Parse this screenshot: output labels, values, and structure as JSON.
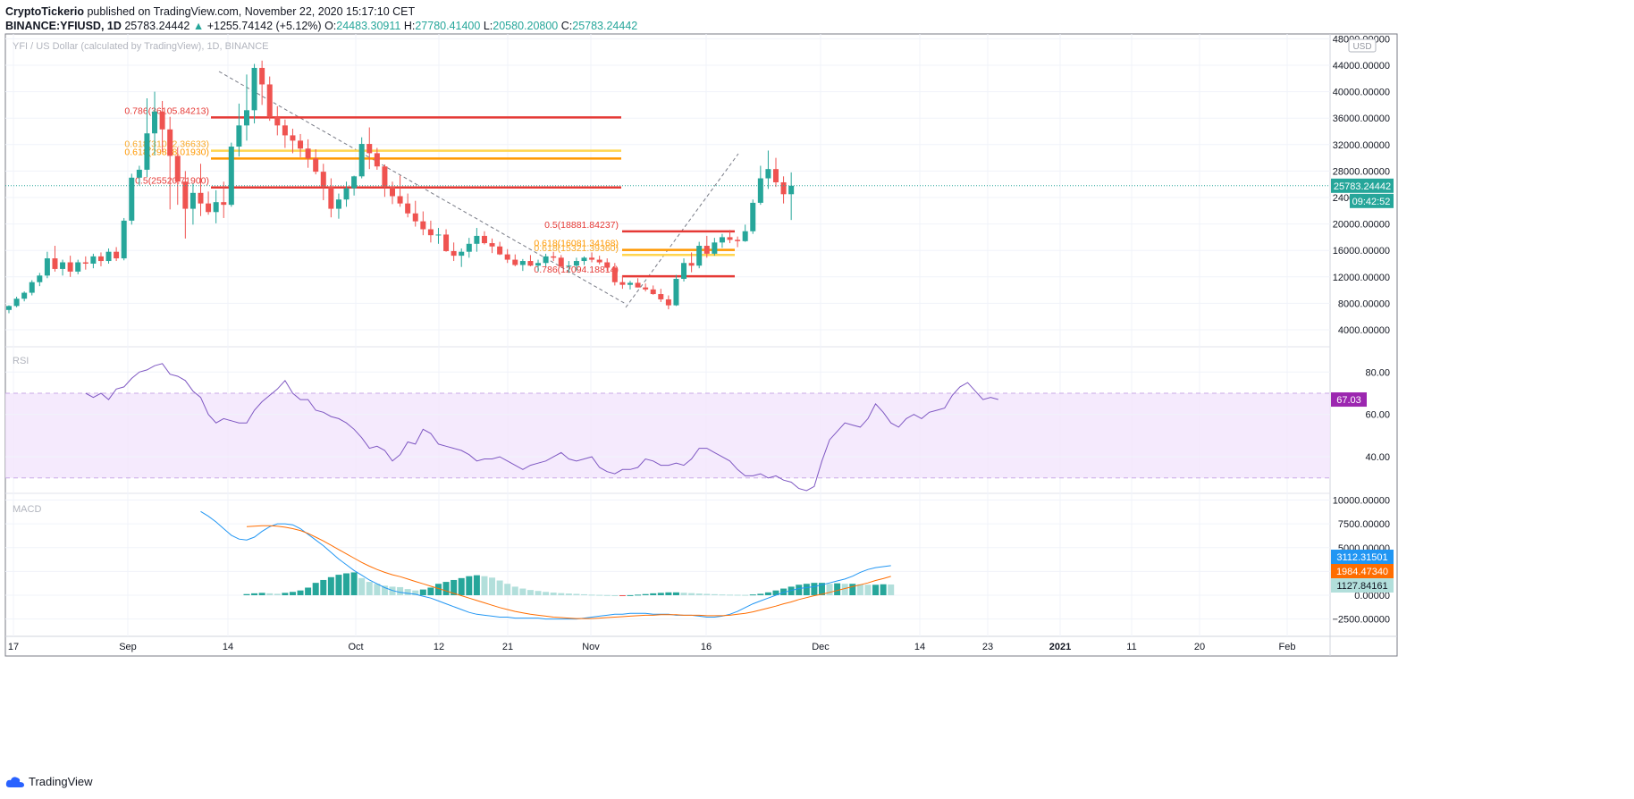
{
  "header": {
    "publisher": "CryptoTickerio",
    "published_text": "published on TradingView.com, November 22, 2020 15:17:10 CET",
    "symbol": "BINANCE:YFIUSD, 1D",
    "last": "25783.24442",
    "change": "+1255.74142 (+5.12%)",
    "open_label": "O:",
    "open": "24483.30911",
    "high_label": "H:",
    "high": "27780.41400",
    "low_label": "L:",
    "low": "20580.20800",
    "close_label": "C:",
    "close": "25783.24442"
  },
  "footer": {
    "brand": "TradingView"
  },
  "colors": {
    "up": "#26a69a",
    "down": "#ef5350",
    "rsi": "#7e57c2",
    "macd": "#2196f3",
    "signal": "#ff6d00",
    "hist_up_strong": "#26a69a",
    "hist_up_weak": "#b2dfdb",
    "hist_down_strong": "#ef5350",
    "hist_down_weak": "#ffcdd2",
    "fib_red": "#e53935",
    "fib_orange": "#ff9800",
    "fib_yellow": "#ffd54f"
  },
  "chart_data": [
    {
      "type": "candlestick",
      "title": "YFI / US Dollar (calculated by TradingView), 1D, BINANCE",
      "currency": "USD",
      "start_date": "2020-08-17",
      "x_ticks": [
        "17",
        "Sep",
        "14",
        "Oct",
        "12",
        "21",
        "Nov",
        "16",
        "Dec",
        "14",
        "23",
        "2021",
        "11",
        "20",
        "Feb"
      ],
      "y_ticks": [
        "48000.00000",
        "44000.00000",
        "40000.00000",
        "36000.00000",
        "32000.00000",
        "28000.00000",
        "24000.00000",
        "20000.00000",
        "16000.00000",
        "12000.00000",
        "8000.00000",
        "4000.00000"
      ],
      "ylim": [
        0,
        48500
      ],
      "ohlc": [
        [
          7000,
          7700,
          6500,
          7600
        ],
        [
          7600,
          9000,
          7400,
          8700
        ],
        [
          8700,
          9800,
          8300,
          9600
        ],
        [
          9600,
          11500,
          9200,
          11200
        ],
        [
          11200,
          12600,
          10600,
          12200
        ],
        [
          12200,
          15800,
          11800,
          14800
        ],
        [
          14800,
          16700,
          12800,
          13200
        ],
        [
          13200,
          14600,
          12200,
          14200
        ],
        [
          14200,
          15200,
          12000,
          12800
        ],
        [
          12800,
          14600,
          12400,
          14200
        ],
        [
          14200,
          15100,
          13100,
          14000
        ],
        [
          14000,
          15500,
          13300,
          15100
        ],
        [
          15100,
          15700,
          13600,
          14400
        ],
        [
          14400,
          16300,
          14000,
          15800
        ],
        [
          15800,
          16500,
          14400,
          14800
        ],
        [
          14800,
          20900,
          14500,
          20500
        ],
        [
          20500,
          27600,
          19900,
          27000
        ],
        [
          27000,
          28800,
          25800,
          28200
        ],
        [
          28200,
          39000,
          27100,
          33700
        ],
        [
          33700,
          40000,
          30400,
          37000
        ],
        [
          37000,
          38600,
          30900,
          34300
        ],
        [
          34300,
          36200,
          22200,
          30300
        ],
        [
          30300,
          31600,
          22900,
          26400
        ],
        [
          26400,
          28000,
          17800,
          22300
        ],
        [
          22300,
          26100,
          19900,
          24700
        ],
        [
          24700,
          29100,
          21200,
          23100
        ],
        [
          23100,
          24900,
          21400,
          21800
        ],
        [
          21800,
          25100,
          20100,
          23300
        ],
        [
          23300,
          26400,
          20900,
          22900
        ],
        [
          22900,
          32300,
          22600,
          31700
        ],
        [
          31700,
          38200,
          30200,
          34900
        ],
        [
          34900,
          42600,
          32600,
          37200
        ],
        [
          37200,
          44200,
          35200,
          43600
        ],
        [
          43600,
          44700,
          38000,
          41100
        ],
        [
          41100,
          42300,
          35600,
          36300
        ],
        [
          36300,
          37800,
          33400,
          34900
        ],
        [
          34900,
          35800,
          31500,
          33400
        ],
        [
          33400,
          34400,
          30700,
          32600
        ],
        [
          32600,
          33600,
          30100,
          31400
        ],
        [
          31400,
          32800,
          28500,
          29900
        ],
        [
          29900,
          31300,
          27500,
          27900
        ],
        [
          27900,
          29100,
          23600,
          25600
        ],
        [
          25600,
          26900,
          21000,
          22300
        ],
        [
          22300,
          24600,
          20800,
          23700
        ],
        [
          23700,
          26400,
          22600,
          25400
        ],
        [
          25400,
          27300,
          24300,
          27200
        ],
        [
          27200,
          33100,
          26900,
          32100
        ],
        [
          32100,
          34600,
          28300,
          30700
        ],
        [
          30700,
          31500,
          28200,
          28700
        ],
        [
          28700,
          29000,
          24100,
          25600
        ],
        [
          25600,
          26400,
          23000,
          24200
        ],
        [
          24200,
          27300,
          22600,
          23100
        ],
        [
          23100,
          24600,
          21000,
          21600
        ],
        [
          21600,
          23500,
          19600,
          20400
        ],
        [
          20400,
          21900,
          18300,
          19200
        ],
        [
          19200,
          20500,
          17200,
          18300
        ],
        [
          18300,
          19400,
          17000,
          18400
        ],
        [
          18400,
          19200,
          15800,
          15900
        ],
        [
          15900,
          17200,
          14400,
          15200
        ],
        [
          15200,
          16300,
          13500,
          15800
        ],
        [
          15800,
          17900,
          14900,
          17000
        ],
        [
          17000,
          19400,
          15800,
          18200
        ],
        [
          18200,
          18900,
          16900,
          17100
        ],
        [
          17100,
          17800,
          15600,
          16600
        ],
        [
          16600,
          17300,
          15300,
          15400
        ],
        [
          15400,
          16200,
          14100,
          14600
        ],
        [
          14600,
          15400,
          13600,
          13800
        ],
        [
          13800,
          14700,
          12900,
          14400
        ],
        [
          14400,
          15300,
          13600,
          13700
        ],
        [
          13700,
          14600,
          12800,
          14100
        ],
        [
          14100,
          15500,
          13600,
          15100
        ],
        [
          15100,
          15800,
          14400,
          14900
        ],
        [
          14900,
          15300,
          13400,
          13600
        ],
        [
          13600,
          14400,
          12600,
          13700
        ],
        [
          13700,
          14900,
          12900,
          14400
        ],
        [
          14400,
          15100,
          13800,
          14900
        ],
        [
          14900,
          15700,
          14200,
          14600
        ],
        [
          14600,
          15200,
          13900,
          14200
        ],
        [
          14200,
          14800,
          12900,
          13400
        ],
        [
          13400,
          14100,
          10700,
          11200
        ],
        [
          11200,
          12200,
          10200,
          10800
        ],
        [
          10800,
          11400,
          10100,
          11100
        ],
        [
          11100,
          11800,
          10400,
          10400
        ],
        [
          10400,
          11000,
          9800,
          10100
        ],
        [
          10100,
          10700,
          9300,
          9400
        ],
        [
          9400,
          10200,
          8200,
          8600
        ],
        [
          8600,
          9200,
          7100,
          7700
        ],
        [
          7700,
          12300,
          7600,
          11700
        ],
        [
          11700,
          14800,
          11300,
          14100
        ],
        [
          14100,
          15700,
          12700,
          13700
        ],
        [
          13700,
          17300,
          13300,
          16700
        ],
        [
          16700,
          18200,
          14900,
          15500
        ],
        [
          15500,
          17900,
          15200,
          17200
        ],
        [
          17200,
          18500,
          16400,
          18000
        ],
        [
          18000,
          19100,
          17100,
          17600
        ],
        [
          17600,
          18100,
          16500,
          17400
        ],
        [
          17400,
          19900,
          17300,
          18900
        ],
        [
          18900,
          23700,
          18500,
          23200
        ],
        [
          23200,
          28800,
          22900,
          26900
        ],
        [
          26900,
          31100,
          25300,
          28300
        ],
        [
          28300,
          30000,
          25600,
          26300
        ],
        [
          26300,
          27200,
          23100,
          24500
        ],
        [
          24500,
          27800,
          20600,
          25783
        ]
      ],
      "annotations": [
        {
          "label": "0.786(36105.84213)",
          "price": 36106,
          "color": "red"
        },
        {
          "label": "0.618(31072.36633)",
          "price": 31072,
          "color": "yellow"
        },
        {
          "label": "0.618(29888.01930)",
          "price": 29888,
          "color": "orange"
        },
        {
          "label": "0.5(25520.71900)",
          "price": 25521,
          "color": "red"
        },
        {
          "label": "0.5(18881.84237)",
          "price": 18882,
          "color": "red"
        },
        {
          "label": "0.618(16081.34168)",
          "price": 16081,
          "color": "orange"
        },
        {
          "label": "0.618(15321.39360)",
          "price": 15321,
          "color": "yellow"
        },
        {
          "label": "0.786(12094.18814)",
          "price": 12094,
          "color": "red"
        }
      ],
      "last_price_label": "25783.24442",
      "countdown_label": "09:42:52"
    },
    {
      "type": "line",
      "name": "RSI",
      "y_ticks": [
        "80.00",
        "60.00",
        "40.00"
      ],
      "ylim": [
        20,
        92
      ],
      "band": [
        30,
        70
      ],
      "start_index": 10,
      "values": [
        70,
        68,
        70,
        67,
        72,
        73,
        77,
        80,
        81,
        83,
        84,
        79,
        78,
        76,
        71,
        68,
        60,
        56,
        58,
        57,
        56,
        56,
        62,
        66,
        69,
        72,
        76,
        70,
        67,
        67,
        62,
        61,
        59,
        58,
        56,
        53,
        49,
        44,
        45,
        43,
        38,
        41,
        47,
        46,
        53,
        51,
        46,
        45,
        44,
        43,
        41,
        38,
        39,
        39,
        40,
        38,
        36,
        34,
        36,
        37,
        38,
        40,
        42,
        39,
        38,
        39,
        40,
        35,
        33,
        32,
        34,
        34,
        35,
        39,
        38,
        36,
        36,
        37,
        36,
        39,
        44,
        44,
        42,
        40,
        38,
        34,
        31,
        31,
        32,
        30,
        31,
        29,
        28,
        25,
        24,
        26,
        38,
        48,
        52,
        56,
        55,
        54,
        58,
        65,
        61,
        56,
        54,
        58,
        60,
        58,
        61,
        62,
        63,
        69,
        73,
        75,
        71,
        67,
        68,
        67.03
      ],
      "last_value_label": "67.03"
    },
    {
      "type": "macd",
      "name": "MACD",
      "y_ticks": [
        "10000.00000",
        "7500.00000",
        "5000.00000",
        "2500.00000",
        "0.00000",
        "-2500.00000"
      ],
      "ylim": [
        -4200,
        10500
      ],
      "macd_start_index": 25,
      "macd": [
        8800,
        8300,
        7700,
        7000,
        6300,
        5900,
        5800,
        6100,
        6700,
        7200,
        7500,
        7500,
        7400,
        7000,
        6400,
        5800,
        5200,
        4500,
        3800,
        3200,
        2600,
        2100,
        1600,
        1200,
        800,
        500,
        300,
        200,
        100,
        -100,
        -300,
        -600,
        -900,
        -1200,
        -1500,
        -1800,
        -2000,
        -2100,
        -2200,
        -2300,
        -2300,
        -2400,
        -2400,
        -2400,
        -2400,
        -2500,
        -2500,
        -2500,
        -2500,
        -2500,
        -2400,
        -2300,
        -2200,
        -2100,
        -2000,
        -2000,
        -1900,
        -1900,
        -1900,
        -2000,
        -2000,
        -2000,
        -2100,
        -2100,
        -2100,
        -2200,
        -2300,
        -2300,
        -2200,
        -2000,
        -1700,
        -1300,
        -900,
        -600,
        -300,
        0,
        300,
        500,
        700,
        800,
        900,
        1100,
        1300,
        1500,
        1700,
        2000,
        2400,
        2700,
        2900,
        3000,
        3112
      ],
      "signal_start_index": 31,
      "signal": [
        7200,
        7250,
        7300,
        7300,
        7250,
        7150,
        7000,
        6800,
        6500,
        6100,
        5700,
        5250,
        4800,
        4350,
        3900,
        3450,
        3050,
        2700,
        2400,
        2150,
        1950,
        1700,
        1450,
        1200,
        950,
        700,
        450,
        200,
        -50,
        -300,
        -550,
        -800,
        -1050,
        -1300,
        -1500,
        -1700,
        -1850,
        -2000,
        -2100,
        -2200,
        -2300,
        -2350,
        -2400,
        -2450,
        -2450,
        -2450,
        -2400,
        -2350,
        -2300,
        -2250,
        -2200,
        -2150,
        -2100,
        -2100,
        -2050,
        -2050,
        -2050,
        -2100,
        -2100,
        -2100,
        -2150,
        -2150,
        -2150,
        -2100,
        -2000,
        -1900,
        -1750,
        -1550,
        -1350,
        -1150,
        -900,
        -700,
        -450,
        -250,
        -50,
        100,
        300,
        500,
        700,
        900,
        1100,
        1300,
        1550,
        1750,
        1984
      ],
      "histogram_start_index": 31,
      "histogram": [
        120,
        200,
        250,
        200,
        150,
        250,
        350,
        500,
        800,
        1300,
        1600,
        1900,
        2150,
        2300,
        2400,
        1800,
        1400,
        1200,
        1000,
        900,
        850,
        650,
        500,
        600,
        800,
        1200,
        1400,
        1600,
        1800,
        2000,
        2100,
        2000,
        1850,
        1550,
        1200,
        900,
        700,
        550,
        450,
        350,
        280,
        220,
        180,
        140,
        100,
        60,
        40,
        20,
        0,
        -20,
        10,
        60,
        120,
        200,
        250,
        300,
        300,
        260,
        220,
        180,
        140,
        110,
        80,
        60,
        50,
        40,
        80,
        150,
        300,
        500,
        700,
        900,
        1100,
        1200,
        1300,
        1300,
        1200,
        1250,
        1200,
        1200,
        1150,
        1100,
        1100,
        1150,
        1128
      ],
      "macd_label": "3112.31501",
      "signal_label": "1984.47340",
      "histogram_label": "1127.84161"
    }
  ]
}
